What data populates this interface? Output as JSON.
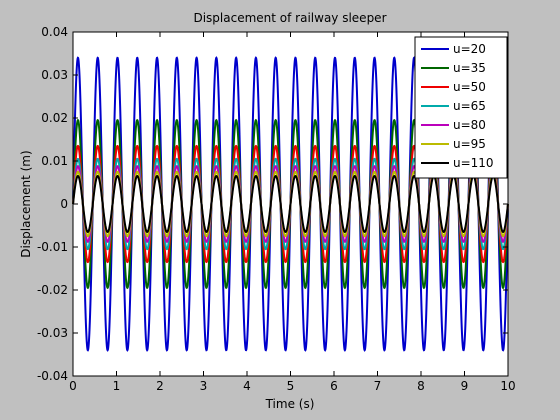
{
  "chart_data": {
    "type": "line",
    "title": "Displacement of railway sleeper",
    "xlabel": "Time (s)",
    "ylabel": "Displacement (m)",
    "xlim": [
      0,
      10
    ],
    "ylim": [
      -0.04,
      0.04
    ],
    "xticks": [
      0,
      1,
      2,
      3,
      4,
      5,
      6,
      7,
      8,
      9,
      10
    ],
    "yticks": [
      -0.04,
      -0.03,
      -0.02,
      -0.01,
      0,
      0.01,
      0.02,
      0.03,
      0.04
    ],
    "xtick_labels": [
      "0",
      "1",
      "2",
      "3",
      "4",
      "5",
      "6",
      "7",
      "8",
      "9",
      "10"
    ],
    "ytick_labels": [
      "-0.04",
      "-0.03",
      "-0.02",
      "-0.01",
      "0",
      "0.01",
      "0.02",
      "0.03",
      "0.04"
    ],
    "grid": false,
    "legend": "top-right",
    "oscillation_frequency_hz": 2.2,
    "series": [
      {
        "name": "u=20",
        "color": "#0000cc",
        "amplitude": 0.034
      },
      {
        "name": "u=35",
        "color": "#006600",
        "amplitude": 0.0195
      },
      {
        "name": "u=50",
        "color": "#ee0000",
        "amplitude": 0.0135
      },
      {
        "name": "u=65",
        "color": "#00aaaa",
        "amplitude": 0.0105
      },
      {
        "name": "u=80",
        "color": "#bb00bb",
        "amplitude": 0.0088
      },
      {
        "name": "u=95",
        "color": "#bbbb00",
        "amplitude": 0.0075
      },
      {
        "name": "u=110",
        "color": "#000000",
        "amplitude": 0.0065
      }
    ]
  }
}
